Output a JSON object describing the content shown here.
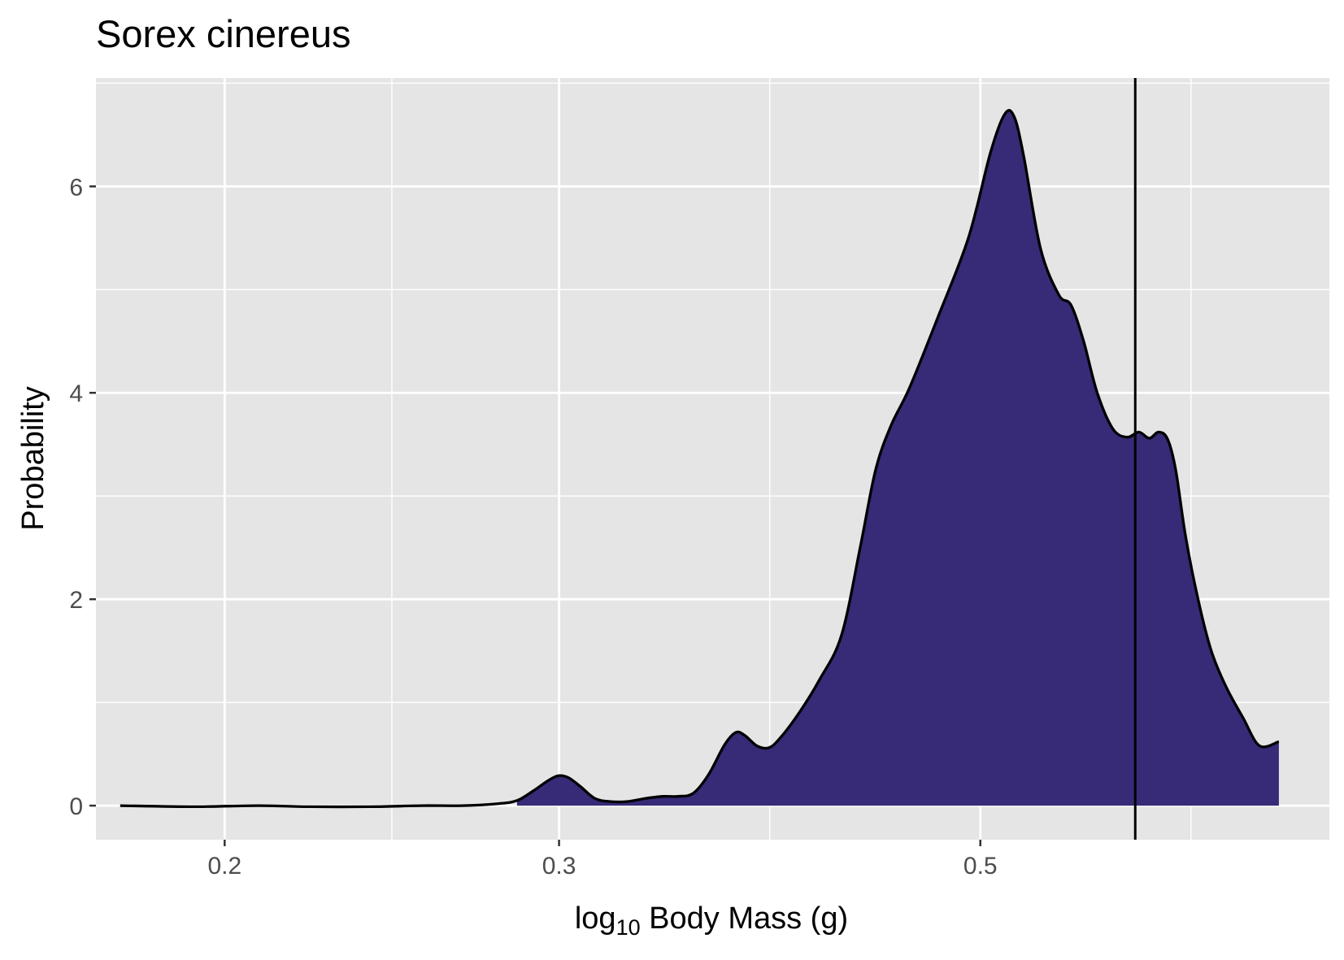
{
  "chart_data": {
    "type": "area",
    "title": "Sorex cinereus",
    "xlabel": {
      "prefix": "log",
      "subscript": "10",
      "suffix": " Body Mass (g)"
    },
    "ylabel": "Probability",
    "x_scale": "log",
    "x_ticks": [
      "0.2",
      "0.3",
      "0.5"
    ],
    "y_ticks": [
      "0",
      "2",
      "4",
      "6"
    ],
    "xlim": [
      0.1711,
      0.7634
    ],
    "ylim": [
      -0.33,
      7.05
    ],
    "grid": true,
    "vline_x": 0.6033,
    "fill_start_x": 0.2851,
    "fill_end_x": 0.7181,
    "series": [
      {
        "values": [
          [
            0.1762,
            0.0
          ],
          [
            0.1927,
            -0.01
          ],
          [
            0.2083,
            0.0
          ],
          [
            0.2215,
            -0.01
          ],
          [
            0.2391,
            -0.01
          ],
          [
            0.2541,
            0.0
          ],
          [
            0.2669,
            0.0
          ],
          [
            0.2789,
            0.02
          ],
          [
            0.2851,
            0.05
          ],
          [
            0.2906,
            0.14
          ],
          [
            0.2959,
            0.24
          ],
          [
            0.2998,
            0.29
          ],
          [
            0.3035,
            0.27
          ],
          [
            0.3081,
            0.18
          ],
          [
            0.3133,
            0.07
          ],
          [
            0.319,
            0.04
          ],
          [
            0.326,
            0.04
          ],
          [
            0.3331,
            0.07
          ],
          [
            0.3404,
            0.09
          ],
          [
            0.3467,
            0.09
          ],
          [
            0.353,
            0.12
          ],
          [
            0.3596,
            0.3
          ],
          [
            0.3667,
            0.59
          ],
          [
            0.3717,
            0.71
          ],
          [
            0.3758,
            0.68
          ],
          [
            0.3813,
            0.58
          ],
          [
            0.3868,
            0.56
          ],
          [
            0.392,
            0.65
          ],
          [
            0.4014,
            0.9
          ],
          [
            0.4114,
            1.22
          ],
          [
            0.4225,
            1.65
          ],
          [
            0.4322,
            2.5
          ],
          [
            0.4403,
            3.25
          ],
          [
            0.4486,
            3.68
          ],
          [
            0.4589,
            4.05
          ],
          [
            0.4751,
            4.74
          ],
          [
            0.4928,
            5.5
          ],
          [
            0.5062,
            6.33
          ],
          [
            0.515,
            6.7
          ],
          [
            0.5208,
            6.68
          ],
          [
            0.5269,
            6.3
          ],
          [
            0.5378,
            5.4
          ],
          [
            0.5499,
            4.95
          ],
          [
            0.5581,
            4.85
          ],
          [
            0.5667,
            4.5
          ],
          [
            0.5761,
            4.0
          ],
          [
            0.5872,
            3.65
          ],
          [
            0.5974,
            3.57
          ],
          [
            0.6059,
            3.62
          ],
          [
            0.6137,
            3.56
          ],
          [
            0.6207,
            3.62
          ],
          [
            0.6275,
            3.55
          ],
          [
            0.6337,
            3.25
          ],
          [
            0.6414,
            2.6
          ],
          [
            0.6514,
            1.98
          ],
          [
            0.6616,
            1.5
          ],
          [
            0.6736,
            1.15
          ],
          [
            0.6876,
            0.85
          ],
          [
            0.7014,
            0.58
          ],
          [
            0.7181,
            0.62
          ]
        ]
      }
    ],
    "colors": {
      "fill": "#372a77",
      "line": "#000000",
      "panel": "#e5e5e5",
      "grid": "#ffffff"
    }
  }
}
